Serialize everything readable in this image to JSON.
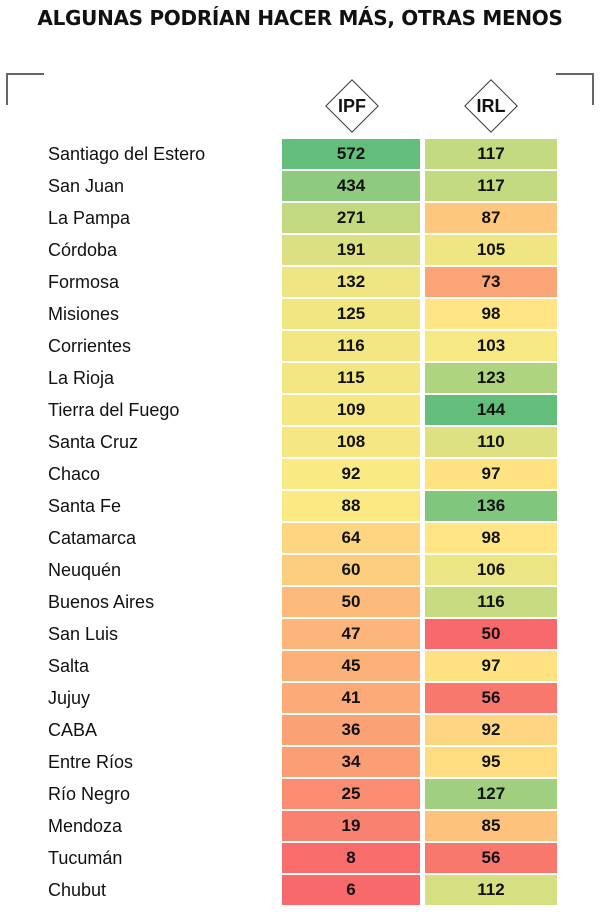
{
  "chart_data": {
    "type": "heatmap",
    "title": "ALGUNAS PODRÍAN HACER MÁS, OTRAS MENOS",
    "columns": [
      "IPF",
      "IRL"
    ],
    "rows": [
      "Santiago del Estero",
      "San Juan",
      "La Pampa",
      "Córdoba",
      "Formosa",
      "Misiones",
      "Corrientes",
      "La Rioja",
      "Tierra del Fuego",
      "Santa Cruz",
      "Chaco",
      "Santa Fe",
      "Catamarca",
      "Neuquén",
      "Buenos Aires",
      "San Luis",
      "Salta",
      "Jujuy",
      "CABA",
      "Entre Ríos",
      "Río Negro",
      "Mendoza",
      "Tucumán",
      "Chubut"
    ],
    "series": [
      {
        "name": "IPF",
        "values": [
          572,
          434,
          271,
          191,
          132,
          125,
          116,
          115,
          109,
          108,
          92,
          88,
          64,
          60,
          50,
          47,
          45,
          41,
          36,
          34,
          25,
          19,
          8,
          6
        ]
      },
      {
        "name": "IRL",
        "values": [
          117,
          117,
          87,
          105,
          73,
          98,
          103,
          123,
          144,
          110,
          97,
          136,
          98,
          106,
          116,
          50,
          97,
          56,
          92,
          95,
          127,
          85,
          56,
          112
        ]
      }
    ],
    "color_scale": {
      "low": "#f8696b",
      "mid": "#ffeb84",
      "high": "#63be7b"
    }
  }
}
